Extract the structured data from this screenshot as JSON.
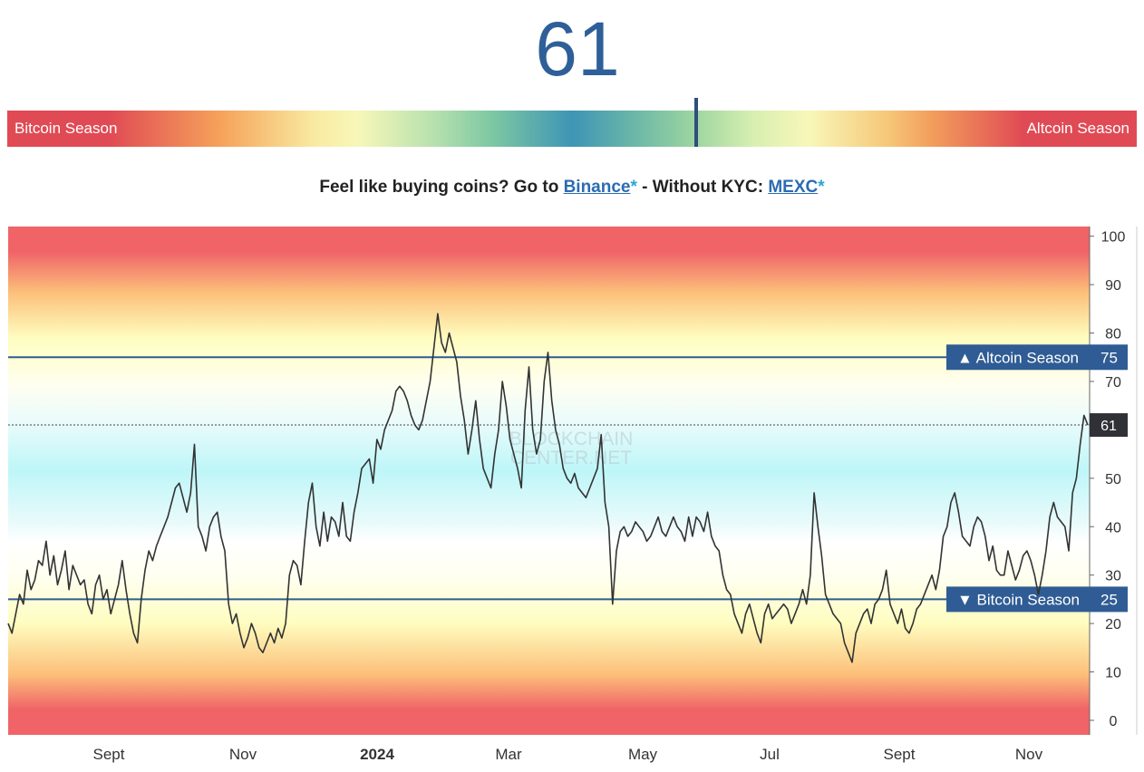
{
  "header": {
    "current_value": "61",
    "gauge_left_label": "Bitcoin Season",
    "gauge_right_label": "Altcoin Season",
    "gauge_position": 61
  },
  "promo": {
    "prefix": "Feel like buying coins? Go to ",
    "link1": "Binance",
    "star1": "*",
    "middle": " - Without KYC: ",
    "link2": "MEXC",
    "star2": "*"
  },
  "colors": {
    "line": "#333333",
    "threshold": "#2f5c94",
    "red": "#f06468",
    "orange": "#fcc07a",
    "yellow": "#fefdc0",
    "cyan": "#bef6f8",
    "badge_dark": "#2f3136"
  },
  "chart_data": {
    "type": "line",
    "ylim": [
      -3,
      102
    ],
    "yticks": [
      0,
      10,
      20,
      30,
      40,
      50,
      60,
      70,
      80,
      90,
      100
    ],
    "x_labels": [
      "Sept",
      "Nov",
      "2024",
      "Mar",
      "May",
      "Jul",
      "Sept",
      "Nov"
    ],
    "thresholds": [
      {
        "label": "▲ Altcoin Season",
        "value": 75
      },
      {
        "label": "▼ Bitcoin Season",
        "value": 25
      }
    ],
    "current": 61,
    "watermark": [
      "BLOCKCHAIN",
      "CENTER.NET"
    ],
    "series": [
      {
        "values": [
          20,
          18,
          22,
          26,
          24,
          31,
          27,
          29,
          33,
          32,
          37,
          30,
          34,
          28,
          31,
          35,
          27,
          32,
          30,
          28,
          29,
          24,
          22,
          28,
          30,
          25,
          27,
          22,
          25,
          28,
          33,
          27,
          22,
          18,
          16,
          25,
          31,
          35,
          33,
          36,
          38,
          40,
          42,
          45,
          48,
          49,
          46,
          43,
          47,
          57,
          40,
          38,
          35,
          40,
          42,
          43,
          38,
          35,
          24,
          20,
          22,
          18,
          15,
          17,
          20,
          18,
          15,
          14,
          16,
          18,
          16,
          19,
          17,
          20,
          30,
          33,
          32,
          28,
          37,
          45,
          49,
          40,
          36,
          43,
          37,
          42,
          41,
          38,
          45,
          38,
          37,
          43,
          47,
          52,
          53,
          54,
          49,
          58,
          56,
          60,
          62,
          64,
          68,
          69,
          68,
          66,
          63,
          61,
          60,
          62,
          66,
          70,
          77,
          84,
          78,
          76,
          80,
          77,
          74,
          67,
          62,
          55,
          60,
          66,
          58,
          52,
          50,
          48,
          55,
          60,
          70,
          65,
          58,
          55,
          52,
          48,
          64,
          73,
          60,
          55,
          58,
          70,
          76,
          66,
          60,
          57,
          52,
          50,
          49,
          51,
          48,
          47,
          46,
          48,
          50,
          52,
          59,
          45,
          40,
          24,
          35,
          39,
          40,
          38,
          39,
          41,
          40,
          39,
          37,
          38,
          40,
          42,
          39,
          38,
          40,
          42,
          40,
          39,
          37,
          42,
          38,
          42,
          41,
          39,
          43,
          38,
          36,
          35,
          30,
          27,
          26,
          22,
          20,
          18,
          22,
          24,
          21,
          18,
          16,
          22,
          24,
          21,
          22,
          23,
          24,
          23,
          20,
          22,
          24,
          27,
          24,
          30,
          47,
          40,
          34,
          26,
          24,
          22,
          21,
          20,
          16,
          14,
          12,
          18,
          20,
          22,
          23,
          20,
          24,
          25,
          27,
          31,
          24,
          22,
          20,
          23,
          19,
          18,
          20,
          23,
          24,
          26,
          28,
          30,
          27,
          31,
          38,
          40,
          45,
          47,
          43,
          38,
          37,
          36,
          40,
          42,
          41,
          38,
          33,
          36,
          31,
          30,
          30,
          35,
          32,
          29,
          31,
          34,
          35,
          33,
          30,
          26,
          30,
          35,
          42,
          45,
          42,
          41,
          40,
          35,
          47,
          50,
          57,
          63,
          61
        ]
      }
    ]
  }
}
